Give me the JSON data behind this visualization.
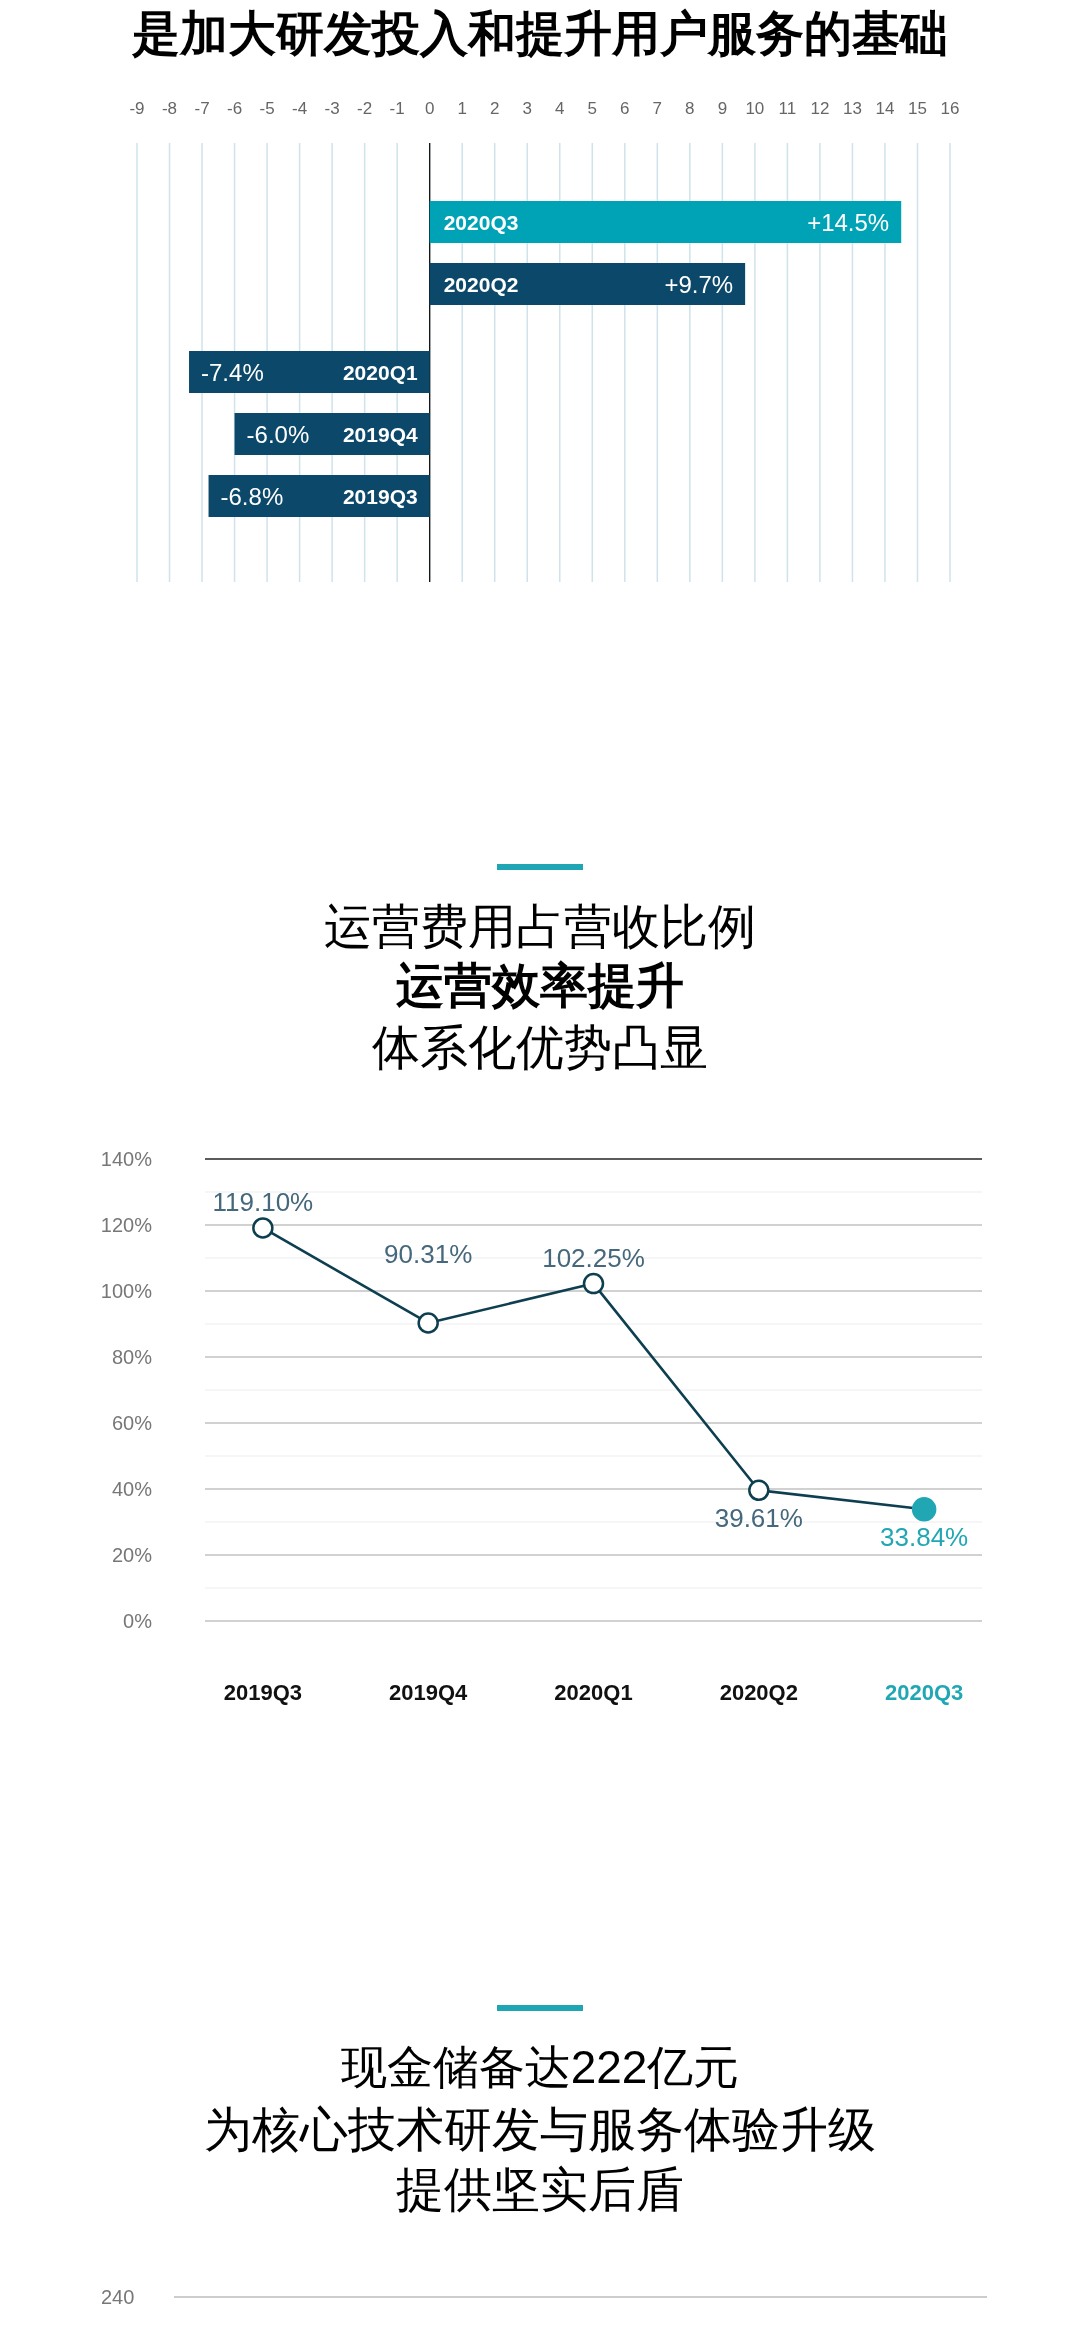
{
  "chart_data": [
    {
      "type": "bar",
      "title": "是加大研发投入和提升用户服务的基础",
      "orientation": "horizontal",
      "categories": [
        "2020Q3",
        "2020Q2",
        "2020Q1",
        "2019Q4",
        "2019Q3"
      ],
      "values": [
        14.5,
        9.7,
        -7.4,
        -6.0,
        -6.8
      ],
      "colors": [
        "#00a3b5",
        "#0b4869",
        "#0b4869",
        "#0b4869",
        "#0b4869"
      ],
      "value_labels": [
        "+14.5%",
        "+9.7%",
        "-7.4%",
        "-6.0%",
        "-6.8%"
      ],
      "xlim": [
        -9,
        16
      ],
      "xticks": [
        -9,
        -8,
        -7,
        -6,
        -5,
        -4,
        -3,
        -2,
        -1,
        0,
        1,
        2,
        3,
        4,
        5,
        6,
        7,
        8,
        9,
        10,
        11,
        12,
        13,
        14,
        15,
        16
      ],
      "grid": "x"
    },
    {
      "type": "line",
      "subtitle": "运营费用占营收比例",
      "title": "运营效率提升",
      "annotations": [
        "体系化优势凸显"
      ],
      "categories": [
        "2019Q3",
        "2019Q4",
        "2020Q1",
        "2020Q2",
        "2020Q3"
      ],
      "series": [
        {
          "color": "#0e3f50",
          "colors": [
            "#0e3f50",
            "#0e3f50",
            "#0e3f50",
            "#0e3f50",
            "#21a7b4"
          ],
          "values": [
            119.1,
            90.31,
            102.25,
            39.61,
            33.84
          ],
          "value_labels": [
            "119.10%",
            "90.31%",
            "102.25%",
            "39.61%",
            "33.84%"
          ]
        }
      ],
      "ylim": [
        0,
        140
      ],
      "yticks": [
        {
          "value": 0,
          "label": "0%"
        },
        {
          "value": 10,
          "label": null
        },
        {
          "value": 20,
          "label": "20%"
        },
        {
          "value": 30,
          "label": null
        },
        {
          "value": 40,
          "label": "40%"
        },
        {
          "value": 50,
          "label": null
        },
        {
          "value": 60,
          "label": "60%"
        },
        {
          "value": 70,
          "label": null
        },
        {
          "value": 80,
          "label": "80%"
        },
        {
          "value": 90,
          "label": null
        },
        {
          "value": 100,
          "label": "100%"
        },
        {
          "value": 110,
          "label": null
        },
        {
          "value": 120,
          "label": "120%"
        },
        {
          "value": 130,
          "label": null
        },
        {
          "value": 140,
          "label": "140%"
        }
      ],
      "grid": "y",
      "marker": "circle",
      "line_style": "solid"
    },
    {
      "type": "other",
      "title": "现金储备达222亿元",
      "subtitle": "为核心技术研发与服务体验升级提供坚实后盾",
      "annotations": [
        "240"
      ]
    }
  ]
}
